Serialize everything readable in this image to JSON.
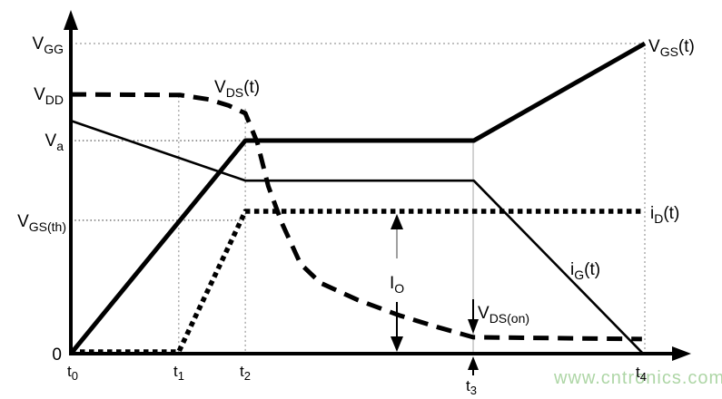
{
  "watermark": {
    "text": "www.cntronics.com"
  },
  "colors": {
    "line": "#000000",
    "grid": "#9a9a9a",
    "watermark": "#aed6a6",
    "background": "#ffffff"
  },
  "labels": {
    "y": {
      "vgg": {
        "pre": "V",
        "sub": "GG"
      },
      "vdd": {
        "pre": "V",
        "sub": "DD"
      },
      "va": {
        "pre": "V",
        "sub": "a"
      },
      "vgsth": {
        "pre": "V",
        "sub": "GS(th)"
      },
      "zero": {
        "pre": "0"
      }
    },
    "x": {
      "t0": {
        "pre": "t",
        "sub": "0"
      },
      "t1": {
        "pre": "t",
        "sub": "1"
      },
      "t2": {
        "pre": "t",
        "sub": "2"
      },
      "t3": {
        "pre": "t",
        "sub": "3"
      },
      "t4": {
        "pre": "t",
        "sub": "4"
      }
    },
    "curves": {
      "vds": {
        "pre": "V",
        "sub": "DS",
        "post": "(t)"
      },
      "vgs": {
        "pre": "V",
        "sub": "GS",
        "post": "(t)"
      },
      "id": {
        "pre": "i",
        "sub": "D",
        "post": "(t)"
      },
      "ig": {
        "pre": "i",
        "sub": "G",
        "post": "(t)"
      }
    },
    "annotations": {
      "io": {
        "pre": "I",
        "sub": "O"
      },
      "vdson": {
        "pre": "V",
        "sub": "DS(on)"
      }
    }
  },
  "chart_data": {
    "type": "line",
    "x_unit": "time, normalized (t0 = 0, t4 = 1); unlabeled qualitative time axis",
    "y_unit": "normalized amplitude (0 = axis zero, 1 = VGG level)",
    "x_ticks": [
      {
        "label": "t0",
        "x": 0.0
      },
      {
        "label": "t1",
        "x": 0.188
      },
      {
        "label": "t2",
        "x": 0.304
      },
      {
        "label": "t3",
        "x": 0.701
      },
      {
        "label": "t4",
        "x": 1.0
      }
    ],
    "y_levels": [
      {
        "label": "VGG",
        "y": 1.0
      },
      {
        "label": "VDD",
        "y": 0.836
      },
      {
        "label": "Va",
        "y": 0.687
      },
      {
        "label": "VGS(th)",
        "y": 0.43
      },
      {
        "label": "0",
        "y": 0.0
      }
    ],
    "series": [
      {
        "id": "ig",
        "name": "iG(t)",
        "style": "thin-solid",
        "points": [
          [
            0,
            0.751
          ],
          [
            0.304,
            0.558
          ],
          [
            0.702,
            0.558
          ],
          [
            0.997,
            0.0
          ]
        ]
      },
      {
        "id": "vds",
        "name": "VDS(t)",
        "style": "thick-dashed",
        "points": [
          [
            0,
            0.836
          ],
          [
            0.19,
            0.834
          ],
          [
            0.24,
            0.82
          ],
          [
            0.275,
            0.8
          ],
          [
            0.304,
            0.775
          ],
          [
            0.325,
            0.68
          ],
          [
            0.344,
            0.54
          ],
          [
            0.368,
            0.42
          ],
          [
            0.4,
            0.29
          ],
          [
            0.435,
            0.228
          ],
          [
            0.5,
            0.173
          ],
          [
            0.573,
            0.123
          ],
          [
            0.64,
            0.085
          ],
          [
            0.701,
            0.053
          ],
          [
            0.995,
            0.047
          ]
        ]
      },
      {
        "id": "id",
        "name": "iD(t)",
        "style": "thick-dotted",
        "points": [
          [
            0,
            0.006
          ],
          [
            0.188,
            0.006
          ],
          [
            0.304,
            0.459
          ],
          [
            0.999,
            0.459
          ]
        ]
      },
      {
        "id": "vgs",
        "name": "VGS(t)",
        "style": "thick-solid",
        "points": [
          [
            0,
            0.0
          ],
          [
            0.304,
            0.687
          ],
          [
            0.702,
            0.687
          ],
          [
            1.0,
            1.0
          ]
        ]
      }
    ],
    "gridlines": {
      "vertical": [
        {
          "at": "t1",
          "x": 0.188,
          "y_top": 0.83,
          "style": "dotted"
        },
        {
          "at": "t2",
          "x": 0.304,
          "y_top": 0.79,
          "style": "dotted"
        },
        {
          "at": "t3",
          "x": 0.701,
          "y_top": 0.687,
          "style": "solid-light"
        },
        {
          "at": "t4",
          "x": 1.0,
          "y_top": 1.0,
          "style": "dotted"
        }
      ],
      "horizontal": [
        {
          "at": "VGG",
          "y": 1.0,
          "x_right": 1.0,
          "style": "dotted"
        },
        {
          "at": "Va",
          "y": 0.687,
          "x_right": 0.304,
          "style": "dotted-dark"
        },
        {
          "at": "VGS(th)",
          "y": 0.43,
          "x_right": 0.304,
          "style": "dotted-dark"
        }
      ]
    },
    "annotations": [
      {
        "label": "IO",
        "type": "vertical-double-arrow",
        "x": 0.568,
        "y_from": 0.0,
        "y_to": 0.459
      },
      {
        "label": "VDS(on)",
        "type": "down-arrow",
        "x": 0.701,
        "points_to_y": 0.053
      }
    ],
    "legend_position": "none",
    "grid": "partial reference gridlines only"
  }
}
